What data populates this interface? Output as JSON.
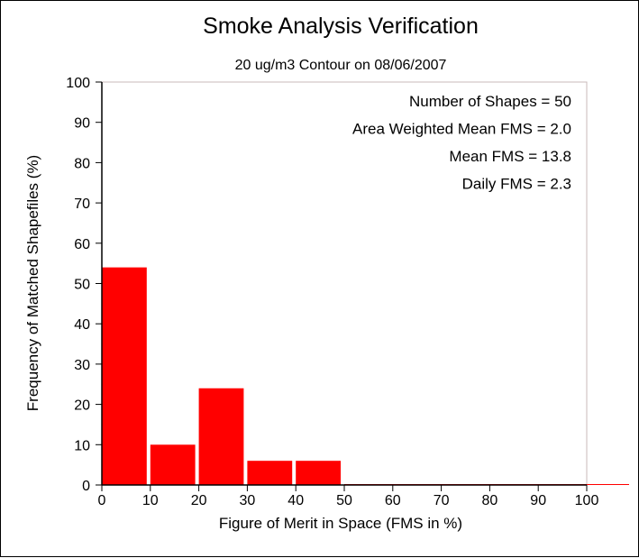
{
  "chart_data": {
    "type": "bar",
    "title": "Smoke Analysis Verification",
    "subtitle": "20 ug/m3 Contour on 08/06/2007",
    "xlabel": "Figure of Merit in Space (FMS in %)",
    "ylabel": "Frequency of Matched Shapefiles (%)",
    "xlim": [
      0,
      100
    ],
    "ylim": [
      0,
      100
    ],
    "x_ticks": [
      "0",
      "10",
      "20",
      "30",
      "40",
      "50",
      "60",
      "70",
      "80",
      "90",
      "100"
    ],
    "y_ticks": [
      "0",
      "10",
      "20",
      "30",
      "40",
      "50",
      "60",
      "70",
      "80",
      "90",
      "100"
    ],
    "bins": [
      [
        0,
        10
      ],
      [
        10,
        20
      ],
      [
        20,
        30
      ],
      [
        30,
        40
      ],
      [
        40,
        50
      ],
      [
        50,
        60
      ],
      [
        60,
        70
      ],
      [
        70,
        80
      ],
      [
        80,
        90
      ],
      [
        90,
        100
      ]
    ],
    "values": [
      54,
      10,
      24,
      6,
      6,
      0,
      0,
      0,
      0,
      0
    ],
    "bar_color": "#ff0000",
    "grid": false,
    "annotations": [
      "Number of Shapes = 50",
      "Area Weighted Mean FMS = 2.0",
      "Mean FMS = 13.8",
      "Daily FMS = 2.3"
    ]
  }
}
